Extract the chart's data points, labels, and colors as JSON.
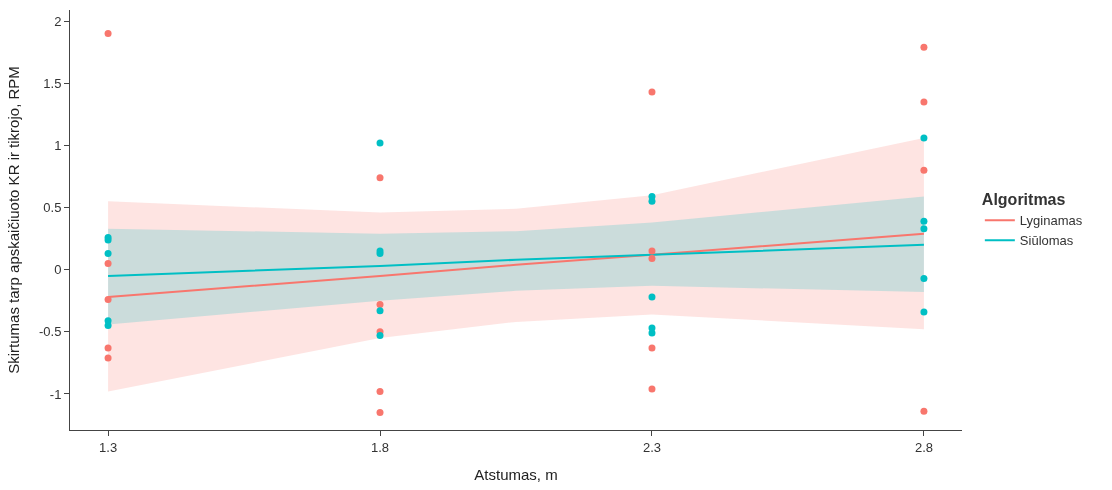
{
  "chart_data": {
    "type": "scatter",
    "xlabel": "Atstumas, m",
    "ylabel": "Skirtumas tarp apskaičiuoto KR ir tikrojo, RPM",
    "legend_title": "Algoritmas",
    "xlim": [
      1.23,
      2.87
    ],
    "xticks": [
      1.3,
      1.8,
      2.3,
      2.8
    ],
    "ylim": [
      -1.29,
      2.09
    ],
    "yticks": [
      -1,
      -0.5,
      0,
      0.5,
      1,
      1.5,
      2
    ],
    "grid": false,
    "legend": "right",
    "series": [
      {
        "marker": "circle",
        "color": "#f8766d",
        "x": [
          1.3,
          1.3,
          1.3,
          1.3,
          1.3,
          1.8,
          1.8,
          1.8,
          1.8,
          1.8,
          2.3,
          2.3,
          2.3,
          2.3,
          2.3,
          2.8,
          2.8,
          2.8,
          2.8
        ],
        "values": [
          1.9,
          0.05,
          -0.24,
          -0.63,
          -0.71,
          0.74,
          -0.28,
          -0.5,
          -0.98,
          -1.15,
          1.43,
          0.15,
          0.09,
          -0.63,
          -0.96,
          1.79,
          1.35,
          0.8,
          -1.14
        ]
      },
      {
        "marker": "circle",
        "color": "#00bfc4",
        "x": [
          1.3,
          1.3,
          1.3,
          1.3,
          1.3,
          1.8,
          1.8,
          1.8,
          1.8,
          1.8,
          2.3,
          2.3,
          2.3,
          2.3,
          2.3,
          2.8,
          2.8,
          2.8,
          2.8,
          2.8
        ],
        "values": [
          0.26,
          0.24,
          0.13,
          -0.41,
          -0.45,
          1.02,
          0.15,
          0.13,
          -0.33,
          -0.53,
          0.59,
          0.55,
          -0.22,
          -0.47,
          -0.51,
          1.06,
          0.39,
          0.33,
          -0.07,
          -0.34
        ]
      },
      {
        "type": "line",
        "marker": "none",
        "name": "Lyginamas",
        "color": "#f8766d",
        "x": [
          1.3,
          1.8,
          2.05,
          2.3,
          2.8
        ],
        "values": [
          -0.22,
          -0.05,
          0.04,
          0.12,
          0.29
        ],
        "lower": [
          -0.98,
          -0.55,
          -0.42,
          -0.36,
          -0.48
        ],
        "upper": [
          0.55,
          0.46,
          0.49,
          0.6,
          1.06
        ]
      },
      {
        "type": "line",
        "marker": "none",
        "name": "Siūlomas",
        "color": "#00bfc4",
        "x": [
          1.3,
          1.8,
          2.05,
          2.3,
          2.8
        ],
        "values": [
          -0.05,
          0.03,
          0.08,
          0.12,
          0.2
        ],
        "lower": [
          -0.44,
          -0.25,
          -0.17,
          -0.13,
          -0.18
        ],
        "upper": [
          0.33,
          0.29,
          0.31,
          0.38,
          0.59
        ]
      }
    ]
  }
}
